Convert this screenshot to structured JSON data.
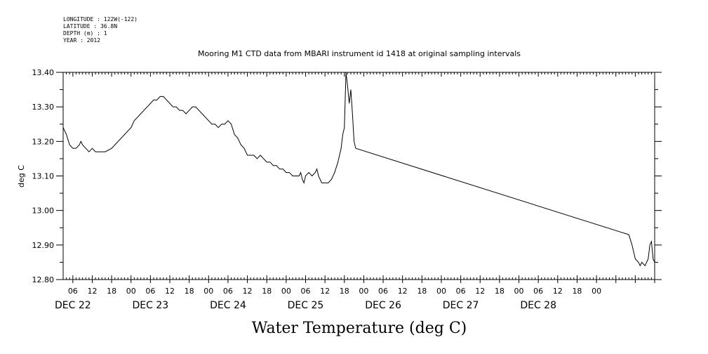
{
  "meta_lines": [
    "LONGITUDE : 122W(-122)",
    "LATITUDE : 36.8N",
    "DEPTH (m) : 1",
    "YEAR : 2012"
  ],
  "chart_data": {
    "type": "line",
    "title": "Mooring M1 CTD data from MBARI instrument id 1418 at original sampling intervals",
    "xlabel": "Water Temperature (deg C)",
    "ylabel": "deg C",
    "xlim_hours": [
      -15,
      168
    ],
    "ylim": [
      12.8,
      13.4
    ],
    "yticks": [
      13.4,
      13.3,
      13.2,
      13.1,
      13.0,
      12.9,
      12.8
    ],
    "ytick_labels": [
      "13.40",
      "13.30",
      "13.20",
      "13.10",
      "13.00",
      "12.90",
      "12.80"
    ],
    "hour_tick_labels": [
      "06",
      "12",
      "18",
      "00",
      "06",
      "12",
      "18",
      "00",
      "06",
      "12",
      "18",
      "00",
      "06",
      "12",
      "18",
      "00",
      "06",
      "12",
      "18",
      "00",
      "06",
      "12",
      "18",
      "00",
      "06",
      "12",
      "18",
      "00"
    ],
    "day_labels": [
      "DEC 22",
      "DEC 23",
      "DEC 24",
      "DEC 25",
      "DEC 26",
      "DEC 27",
      "DEC 28"
    ],
    "grid": false,
    "legend": "none",
    "series": [
      {
        "color": "#000000",
        "points": [
          [
            -15.0,
            13.24
          ],
          [
            -14.0,
            13.22
          ],
          [
            -13.0,
            13.19
          ],
          [
            -12.0,
            13.18
          ],
          [
            -11.0,
            13.18
          ],
          [
            -10.0,
            13.19
          ],
          [
            -9.5,
            13.2
          ],
          [
            -9.0,
            13.19
          ],
          [
            -8.0,
            13.18
          ],
          [
            -7.0,
            13.17
          ],
          [
            -6.0,
            13.18
          ],
          [
            -5.0,
            13.17
          ],
          [
            -4.0,
            13.17
          ],
          [
            -3.0,
            13.17
          ],
          [
            -2.0,
            13.17
          ],
          [
            0.0,
            13.18
          ],
          [
            1.0,
            13.19
          ],
          [
            2.0,
            13.2
          ],
          [
            3.0,
            13.21
          ],
          [
            4.0,
            13.22
          ],
          [
            5.0,
            13.23
          ],
          [
            6.0,
            13.24
          ],
          [
            7.0,
            13.26
          ],
          [
            8.0,
            13.27
          ],
          [
            9.0,
            13.28
          ],
          [
            10.0,
            13.29
          ],
          [
            11.0,
            13.3
          ],
          [
            12.0,
            13.31
          ],
          [
            13.0,
            13.32
          ],
          [
            14.0,
            13.32
          ],
          [
            15.0,
            13.33
          ],
          [
            16.0,
            13.33
          ],
          [
            17.0,
            13.32
          ],
          [
            18.0,
            13.31
          ],
          [
            19.0,
            13.3
          ],
          [
            20.0,
            13.3
          ],
          [
            21.0,
            13.29
          ],
          [
            22.0,
            13.29
          ],
          [
            23.0,
            13.28
          ],
          [
            24.0,
            13.29
          ],
          [
            25.0,
            13.3
          ],
          [
            26.0,
            13.3
          ],
          [
            27.0,
            13.29
          ],
          [
            28.0,
            13.28
          ],
          [
            29.0,
            13.27
          ],
          [
            30.0,
            13.26
          ],
          [
            31.0,
            13.25
          ],
          [
            32.0,
            13.25
          ],
          [
            33.0,
            13.24
          ],
          [
            34.0,
            13.25
          ],
          [
            35.0,
            13.25
          ],
          [
            36.0,
            13.26
          ],
          [
            37.0,
            13.25
          ],
          [
            38.0,
            13.22
          ],
          [
            39.0,
            13.21
          ],
          [
            40.0,
            13.19
          ],
          [
            41.0,
            13.18
          ],
          [
            42.0,
            13.16
          ],
          [
            43.0,
            13.16
          ],
          [
            44.0,
            13.16
          ],
          [
            45.0,
            13.15
          ],
          [
            46.0,
            13.16
          ],
          [
            47.0,
            13.15
          ],
          [
            48.0,
            13.14
          ],
          [
            49.0,
            13.14
          ],
          [
            50.0,
            13.13
          ],
          [
            51.0,
            13.13
          ],
          [
            52.0,
            13.12
          ],
          [
            53.0,
            13.12
          ],
          [
            54.0,
            13.11
          ],
          [
            55.0,
            13.11
          ],
          [
            56.0,
            13.1
          ],
          [
            57.0,
            13.1
          ],
          [
            58.0,
            13.1
          ],
          [
            58.5,
            13.11
          ],
          [
            59.0,
            13.09
          ],
          [
            59.5,
            13.08
          ],
          [
            60.0,
            13.1
          ],
          [
            61.0,
            13.11
          ],
          [
            62.0,
            13.1
          ],
          [
            63.0,
            13.11
          ],
          [
            63.5,
            13.12
          ],
          [
            64.0,
            13.1
          ],
          [
            65.0,
            13.08
          ],
          [
            66.0,
            13.08
          ],
          [
            67.0,
            13.08
          ],
          [
            68.0,
            13.09
          ],
          [
            69.0,
            13.11
          ],
          [
            70.0,
            13.14
          ],
          [
            71.0,
            13.18
          ],
          [
            71.5,
            13.22
          ],
          [
            72.0,
            13.24
          ],
          [
            72.5,
            13.4
          ],
          [
            73.0,
            13.36
          ],
          [
            73.5,
            13.31
          ],
          [
            74.0,
            13.35
          ],
          [
            74.5,
            13.28
          ],
          [
            75.0,
            13.2
          ],
          [
            75.5,
            13.18
          ],
          [
            160.0,
            12.93
          ],
          [
            161.0,
            12.9
          ],
          [
            162.0,
            12.86
          ],
          [
            163.0,
            12.85
          ],
          [
            163.5,
            12.84
          ],
          [
            164.0,
            12.85
          ],
          [
            165.0,
            12.84
          ],
          [
            166.0,
            12.86
          ],
          [
            166.5,
            12.9
          ],
          [
            167.0,
            12.91
          ],
          [
            167.5,
            12.86
          ],
          [
            168.0,
            12.85
          ]
        ]
      }
    ]
  }
}
